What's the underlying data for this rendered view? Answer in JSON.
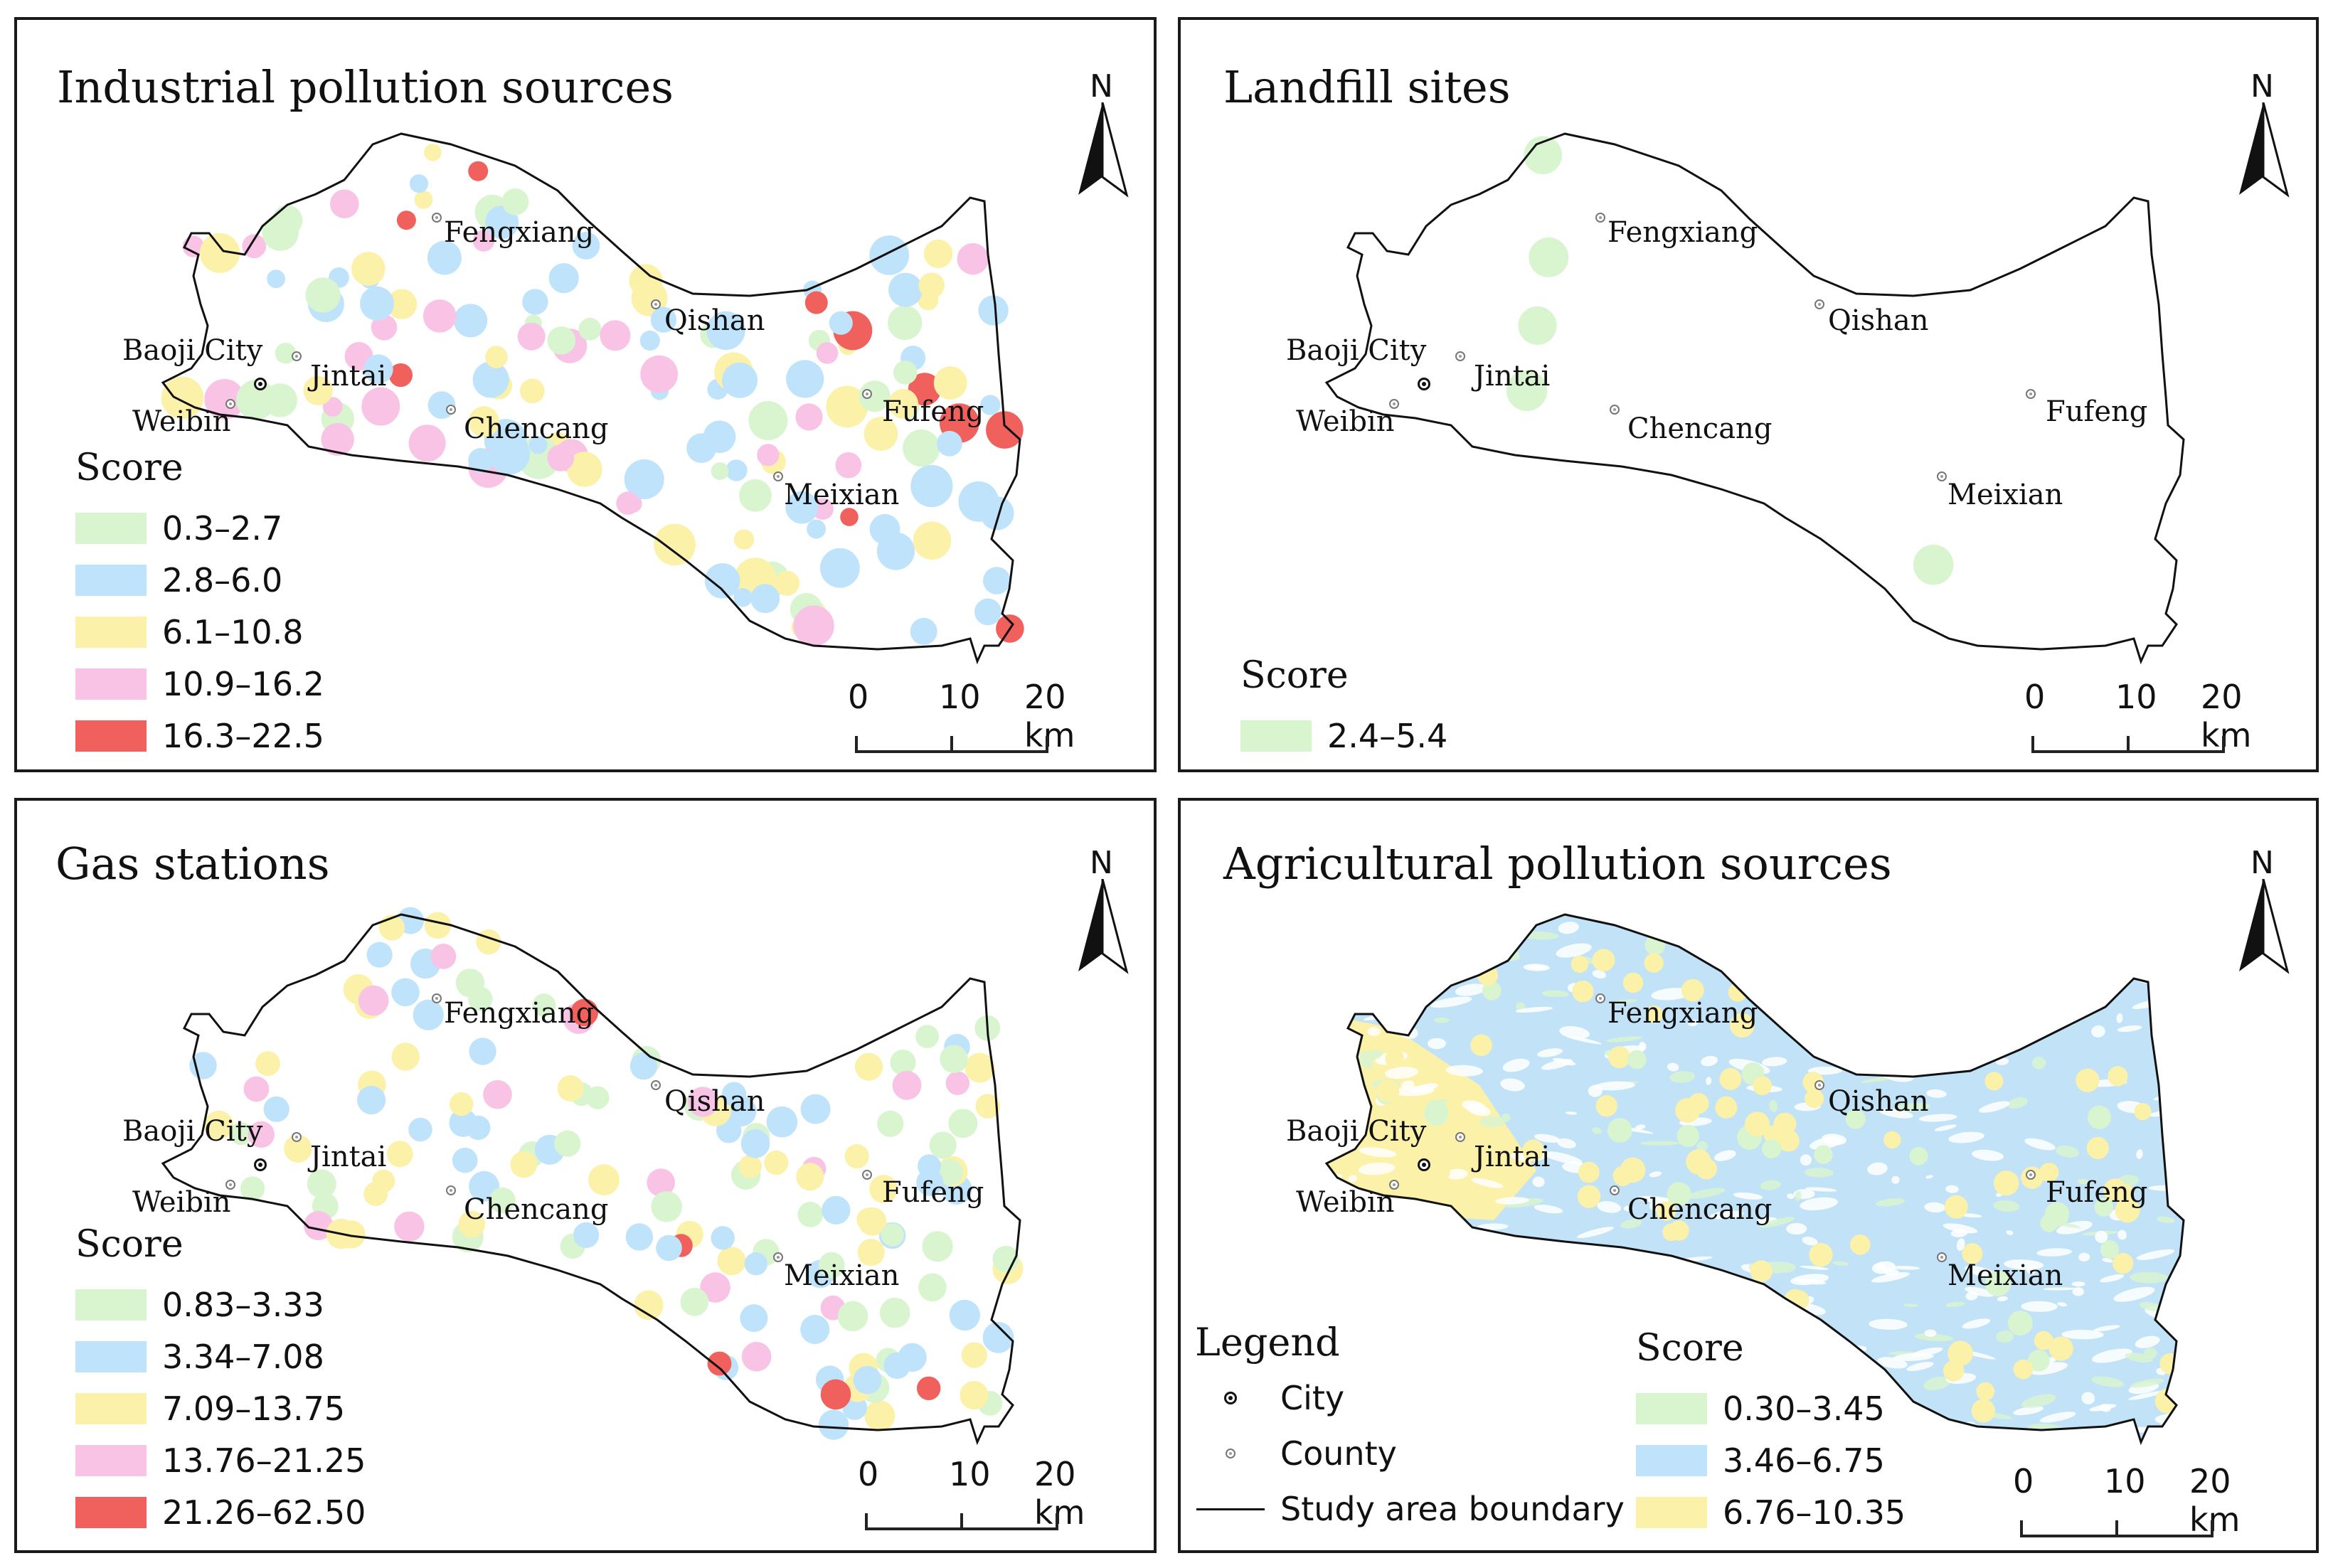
{
  "panels": [
    {
      "title": "Industrial pollution sources",
      "legend_title": "Score",
      "classes": [
        {
          "label": "0.3–2.7",
          "color": "#d9f5d0"
        },
        {
          "label": "2.8–6.0",
          "color": "#bfe3fa"
        },
        {
          "label": "6.1–10.8",
          "color": "#fbf1a8"
        },
        {
          "label": "10.9–16.2",
          "color": "#f9c3e6"
        },
        {
          "label": "16.3–22.5",
          "color": "#f0605c"
        }
      ]
    },
    {
      "title": "Landfill sites",
      "legend_title": "Score",
      "classes": [
        {
          "label": "2.4–5.4",
          "color": "#d9f5d0"
        }
      ]
    },
    {
      "title": "Gas stations",
      "legend_title": "Score",
      "classes": [
        {
          "label": "0.83–3.33",
          "color": "#d9f5d0"
        },
        {
          "label": "3.34–7.08",
          "color": "#bfe3fa"
        },
        {
          "label": "7.09–13.75",
          "color": "#fbf1a8"
        },
        {
          "label": "13.76–21.25",
          "color": "#f9c3e6"
        },
        {
          "label": "21.26–62.50",
          "color": "#f0605c"
        }
      ]
    },
    {
      "title": "Agricultural pollution sources",
      "legend_title": "Score",
      "classes": [
        {
          "label": "0.30–3.45",
          "color": "#d9f5d0"
        },
        {
          "label": "3.46–6.75",
          "color": "#bfe3fa"
        },
        {
          "label": "6.76–10.35",
          "color": "#fbf1a8"
        }
      ]
    }
  ],
  "places": [
    "Baoji City",
    "Jintai",
    "Weibin",
    "Fengxiang",
    "Qishan",
    "Chencang",
    "Fufeng",
    "Meixian"
  ],
  "north_label": "N",
  "scale": {
    "t0": "0",
    "t1": "10",
    "t2": "20 km"
  },
  "main_legend": {
    "title": "Legend",
    "city": "City",
    "county": "County",
    "boundary": "Study area boundary"
  }
}
